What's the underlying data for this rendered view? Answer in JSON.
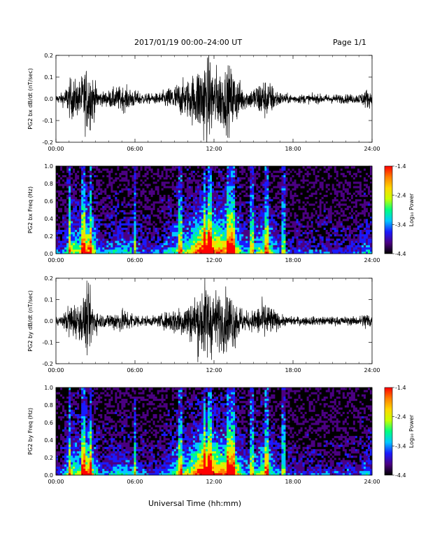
{
  "header": {
    "title": "2017/01/19  00:00–24:00 UT",
    "page": "Page 1/1"
  },
  "footer": {
    "xlabel": "Universal Time (hh:mm)"
  },
  "colorbar": {
    "label": "Log₁₀ Power",
    "ticks": [
      "-1.4",
      "-2.4",
      "-3.4",
      "-4.4"
    ],
    "colors": [
      "#000000",
      "#4b0082",
      "#1a1aff",
      "#00c8ff",
      "#00ff7f",
      "#c8ff00",
      "#ffd700",
      "#ff7f00",
      "#ff0000"
    ]
  },
  "chart_data": [
    {
      "type": "line",
      "ylabel": "PG2 bx dB/dt (nT/sec)",
      "x_ticks": [
        "00:00",
        "06:00",
        "12:00",
        "18:00",
        "24:00"
      ],
      "xlim": [
        0,
        24
      ],
      "ylim": [
        -0.2,
        0.2
      ],
      "y_ticks": [
        "-0.2",
        "-0.1",
        "0.0",
        "0.1",
        "0.2"
      ],
      "series": [
        {
          "values_desc": "dense waveform",
          "bursts": [
            [
              1.8,
              3.2
            ],
            [
              10.5,
              14.2
            ],
            [
              15.5,
              17.0
            ]
          ]
        }
      ]
    },
    {
      "type": "heatmap",
      "ylabel": "PG2 bx Freq (Hz)",
      "x_ticks": [
        "00:00",
        "06:00",
        "12:00",
        "18:00",
        "24:00"
      ],
      "xlim": [
        0,
        24
      ],
      "ylim": [
        0.0,
        1.0
      ],
      "y_ticks": [
        "0.0",
        "0.2",
        "0.4",
        "0.6",
        "0.8",
        "1.0"
      ],
      "zlim": [
        -4.4,
        -1.4
      ]
    },
    {
      "type": "line",
      "ylabel": "PG2 by dB/dt (nT/sec)",
      "x_ticks": [
        "00:00",
        "06:00",
        "12:00",
        "18:00",
        "24:00"
      ],
      "xlim": [
        0,
        24
      ],
      "ylim": [
        -0.2,
        0.2
      ],
      "y_ticks": [
        "-0.2",
        "-0.1",
        "0.0",
        "0.1",
        "0.2"
      ]
    },
    {
      "type": "heatmap",
      "ylabel": "PG2 by Freq (Hz)",
      "x_ticks": [
        "00:00",
        "06:00",
        "12:00",
        "18:00",
        "24:00"
      ],
      "xlim": [
        0,
        24
      ],
      "ylim": [
        0.0,
        1.0
      ],
      "y_ticks": [
        "0.0",
        "0.2",
        "0.4",
        "0.6",
        "0.8",
        "1.0"
      ],
      "zlim": [
        -4.4,
        -1.4
      ]
    }
  ]
}
